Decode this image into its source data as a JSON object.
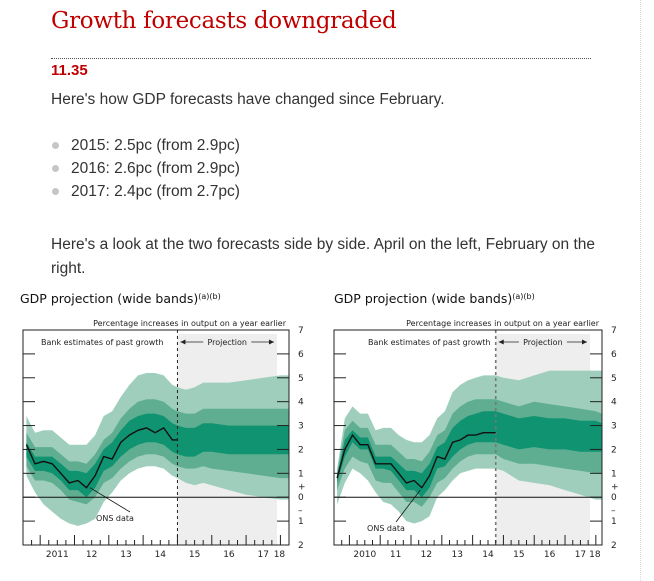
{
  "article": {
    "headline": "Growth forecasts downgraded",
    "timestamp": "11.35",
    "intro": "Here's how GDP forecasts have changed since February.",
    "bullets": [
      "2015: 2.5pc (from 2.9pc)",
      "2016: 2.6pc (from 2.9pc)",
      "2017: 2.4pc (from 2.7pc)"
    ],
    "comparison_text": "Here's a look at the two forecasts side by side. April on the left, February on the right."
  },
  "colors": {
    "headline": "#c00000",
    "band_outer": "#9fcfbc",
    "band_mid": "#5fae91",
    "band_inner": "#0f9370",
    "projection_bg": "#eeeeee",
    "ons_line": "#111111"
  },
  "chart_data": [
    {
      "type": "area",
      "name": "April forecast",
      "title": "GDP projection (wide bands)",
      "title_superscript": "(a)(b)",
      "subtitle": "Percentage increases in output on a year earlier",
      "left_annotation": "Bank estimates of past growth",
      "projection_label": "Projection",
      "ons_label": "ONS data",
      "ylim": [
        -2,
        7
      ],
      "y_ticks": [
        7,
        6,
        5,
        4,
        3,
        2,
        1,
        0,
        -1,
        -2
      ],
      "y_tick_labels": [
        "7",
        "6",
        "5",
        "4",
        "3",
        "2",
        "1",
        "0",
        "1",
        "2"
      ],
      "y_sign_labels": {
        "plus": "+",
        "minus": "–"
      },
      "x_tick_labels": [
        "2011",
        "12",
        "13",
        "14",
        "15",
        "16",
        "17",
        "18"
      ],
      "x_years": [
        2011,
        2012,
        2013,
        2014,
        2015,
        2016,
        2017,
        2018
      ],
      "xlim": [
        2010.5,
        2018.25
      ],
      "projection_start": 2015.0,
      "x": [
        2010.6,
        2010.85,
        2011.1,
        2011.35,
        2011.6,
        2011.85,
        2012.1,
        2012.35,
        2012.6,
        2012.85,
        2013.1,
        2013.35,
        2013.6,
        2013.85,
        2014.1,
        2014.35,
        2014.6,
        2014.85,
        2015.0,
        2015.25,
        2015.5,
        2015.75,
        2016.0,
        2016.5,
        2017.0,
        2017.5,
        2018.0,
        2018.25
      ],
      "ons_data": {
        "x": [
          2010.6,
          2010.85,
          2011.1,
          2011.35,
          2011.6,
          2011.85,
          2012.1,
          2012.35,
          2012.6,
          2012.85,
          2013.1,
          2013.35,
          2013.6,
          2013.85,
          2014.1,
          2014.35,
          2014.6,
          2014.85,
          2015.0
        ],
        "y": [
          2.2,
          1.4,
          1.5,
          1.4,
          1.0,
          0.6,
          0.7,
          0.4,
          0.9,
          1.7,
          1.6,
          2.3,
          2.6,
          2.8,
          2.9,
          2.7,
          2.9,
          2.4,
          2.4
        ]
      },
      "bands": {
        "outer_upper": [
          3.4,
          2.7,
          2.8,
          2.8,
          2.5,
          2.2,
          2.2,
          2.2,
          2.6,
          3.4,
          3.6,
          4.2,
          4.7,
          5.1,
          5.2,
          5.2,
          5.1,
          4.7,
          4.6,
          4.5,
          4.6,
          4.8,
          4.8,
          4.8,
          4.9,
          5.0,
          5.1,
          5.1
        ],
        "mid_upper": [
          2.7,
          2.1,
          2.1,
          2.1,
          1.8,
          1.5,
          1.5,
          1.4,
          1.8,
          2.4,
          2.7,
          3.3,
          3.7,
          4.0,
          4.1,
          4.1,
          4.0,
          3.7,
          3.6,
          3.5,
          3.5,
          3.7,
          3.7,
          3.7,
          3.7,
          3.7,
          3.7,
          3.7
        ],
        "inner_upper": [
          2.3,
          1.7,
          1.7,
          1.7,
          1.4,
          1.1,
          1.1,
          1.0,
          1.4,
          2.0,
          2.3,
          2.8,
          3.2,
          3.4,
          3.5,
          3.5,
          3.4,
          3.1,
          3.0,
          2.9,
          2.9,
          3.1,
          3.1,
          3.0,
          3.0,
          3.0,
          3.0,
          3.0
        ],
        "inner_lower": [
          1.7,
          1.1,
          1.1,
          1.0,
          0.7,
          0.3,
          0.3,
          0.0,
          0.4,
          1.1,
          1.3,
          1.7,
          2.0,
          2.2,
          2.3,
          2.3,
          2.2,
          1.9,
          1.8,
          1.7,
          1.7,
          1.9,
          1.9,
          1.8,
          1.8,
          1.8,
          1.8,
          1.8
        ],
        "mid_lower": [
          1.3,
          0.7,
          0.7,
          0.6,
          0.3,
          -0.1,
          -0.2,
          -0.3,
          0.0,
          0.6,
          0.8,
          1.2,
          1.5,
          1.7,
          1.8,
          1.8,
          1.7,
          1.4,
          1.3,
          1.2,
          1.2,
          1.3,
          1.2,
          1.1,
          1.0,
          0.9,
          0.8,
          0.8
        ],
        "outer_lower": [
          0.9,
          0.2,
          -0.3,
          -0.6,
          -0.9,
          -1.1,
          -1.2,
          -1.1,
          -0.9,
          -0.2,
          0.2,
          0.7,
          1.0,
          1.2,
          1.3,
          1.3,
          1.2,
          0.9,
          0.8,
          0.6,
          0.5,
          0.6,
          0.5,
          0.3,
          0.1,
          0.0,
          -0.1,
          -0.1
        ]
      }
    },
    {
      "type": "area",
      "name": "February forecast",
      "title": "GDP projection (wide bands)",
      "title_superscript": "(a)(b)",
      "subtitle": "Percentage increases in output on a year earlier",
      "left_annotation": "Bank estimates of past growth",
      "projection_label": "Projection",
      "ons_label": "ONS data",
      "ylim": [
        -2,
        7
      ],
      "y_ticks": [
        7,
        6,
        5,
        4,
        3,
        2,
        1,
        0,
        -1,
        -2
      ],
      "y_tick_labels": [
        "7",
        "6",
        "5",
        "4",
        "3",
        "2",
        "1",
        "0",
        "1",
        "2"
      ],
      "y_sign_labels": {
        "plus": "+",
        "minus": "–"
      },
      "x_tick_labels": [
        "2010",
        "11",
        "12",
        "13",
        "14",
        "15",
        "16",
        "17",
        "18"
      ],
      "x_years": [
        2010,
        2011,
        2012,
        2013,
        2014,
        2015,
        2016,
        2017,
        2018
      ],
      "xlim": [
        2009.5,
        2018.2
      ],
      "projection_start": 2014.75,
      "x": [
        2009.6,
        2009.85,
        2010.1,
        2010.35,
        2010.6,
        2010.85,
        2011.1,
        2011.35,
        2011.6,
        2011.85,
        2012.1,
        2012.35,
        2012.6,
        2012.85,
        2013.1,
        2013.35,
        2013.6,
        2013.85,
        2014.1,
        2014.35,
        2014.6,
        2014.75,
        2015.0,
        2015.5,
        2016.0,
        2016.5,
        2017.0,
        2017.5,
        2018.0,
        2018.2
      ],
      "ons_data": {
        "x": [
          2009.6,
          2009.85,
          2010.1,
          2010.35,
          2010.6,
          2010.85,
          2011.1,
          2011.35,
          2011.6,
          2011.85,
          2012.1,
          2012.35,
          2012.6,
          2012.85,
          2013.1,
          2013.35,
          2013.6,
          2013.85,
          2014.1,
          2014.35,
          2014.6,
          2014.75
        ],
        "y": [
          0.8,
          2.0,
          2.6,
          2.2,
          2.2,
          1.4,
          1.4,
          1.4,
          1.0,
          0.6,
          0.7,
          0.4,
          0.9,
          1.7,
          1.6,
          2.3,
          2.4,
          2.6,
          2.6,
          2.7,
          2.7,
          2.7
        ]
      },
      "bands": {
        "outer_upper": [
          1.2,
          3.3,
          3.8,
          3.5,
          3.5,
          2.8,
          2.9,
          2.9,
          2.6,
          2.4,
          2.3,
          2.3,
          2.6,
          3.3,
          3.6,
          4.4,
          4.7,
          4.9,
          5.0,
          5.1,
          5.1,
          5.1,
          5.0,
          4.9,
          5.1,
          5.3,
          5.3,
          5.3,
          5.3,
          5.3
        ],
        "mid_upper": [
          1.0,
          2.8,
          3.2,
          2.9,
          2.9,
          2.2,
          2.2,
          2.2,
          1.9,
          1.6,
          1.6,
          1.5,
          1.9,
          2.6,
          2.8,
          3.5,
          3.8,
          4.0,
          4.1,
          4.1,
          4.1,
          4.1,
          4.0,
          3.8,
          4.0,
          3.9,
          3.8,
          3.7,
          3.6,
          3.5
        ],
        "inner_upper": [
          0.9,
          2.4,
          2.8,
          2.5,
          2.5,
          1.7,
          1.7,
          1.7,
          1.4,
          1.1,
          1.1,
          1.0,
          1.4,
          2.1,
          2.3,
          2.9,
          3.2,
          3.4,
          3.5,
          3.6,
          3.6,
          3.6,
          3.5,
          3.3,
          3.4,
          3.3,
          3.3,
          3.2,
          3.2,
          3.1
        ],
        "inner_lower": [
          0.6,
          1.7,
          2.3,
          2.0,
          2.0,
          1.2,
          1.2,
          1.1,
          0.7,
          0.3,
          0.3,
          0.0,
          0.4,
          1.2,
          1.3,
          1.7,
          2.0,
          2.2,
          2.3,
          2.3,
          2.3,
          2.3,
          2.2,
          2.0,
          2.1,
          2.0,
          2.0,
          1.9,
          1.9,
          1.9
        ],
        "mid_lower": [
          0.3,
          1.2,
          1.7,
          1.5,
          1.4,
          0.7,
          0.6,
          0.6,
          0.2,
          -0.2,
          -0.2,
          -0.4,
          0.0,
          0.6,
          0.8,
          1.2,
          1.5,
          1.7,
          1.8,
          1.8,
          1.8,
          1.8,
          1.6,
          1.4,
          1.4,
          1.3,
          1.2,
          1.1,
          1.0,
          1.0
        ],
        "outer_lower": [
          -0.3,
          0.6,
          1.2,
          1.0,
          0.7,
          0.2,
          -0.2,
          -0.3,
          -0.6,
          -1.0,
          -1.1,
          -1.0,
          -0.8,
          0.0,
          0.3,
          0.7,
          1.0,
          1.1,
          1.2,
          1.2,
          1.2,
          1.2,
          1.1,
          0.7,
          0.6,
          0.5,
          0.3,
          0.1,
          -0.1,
          -0.1
        ]
      }
    }
  ]
}
